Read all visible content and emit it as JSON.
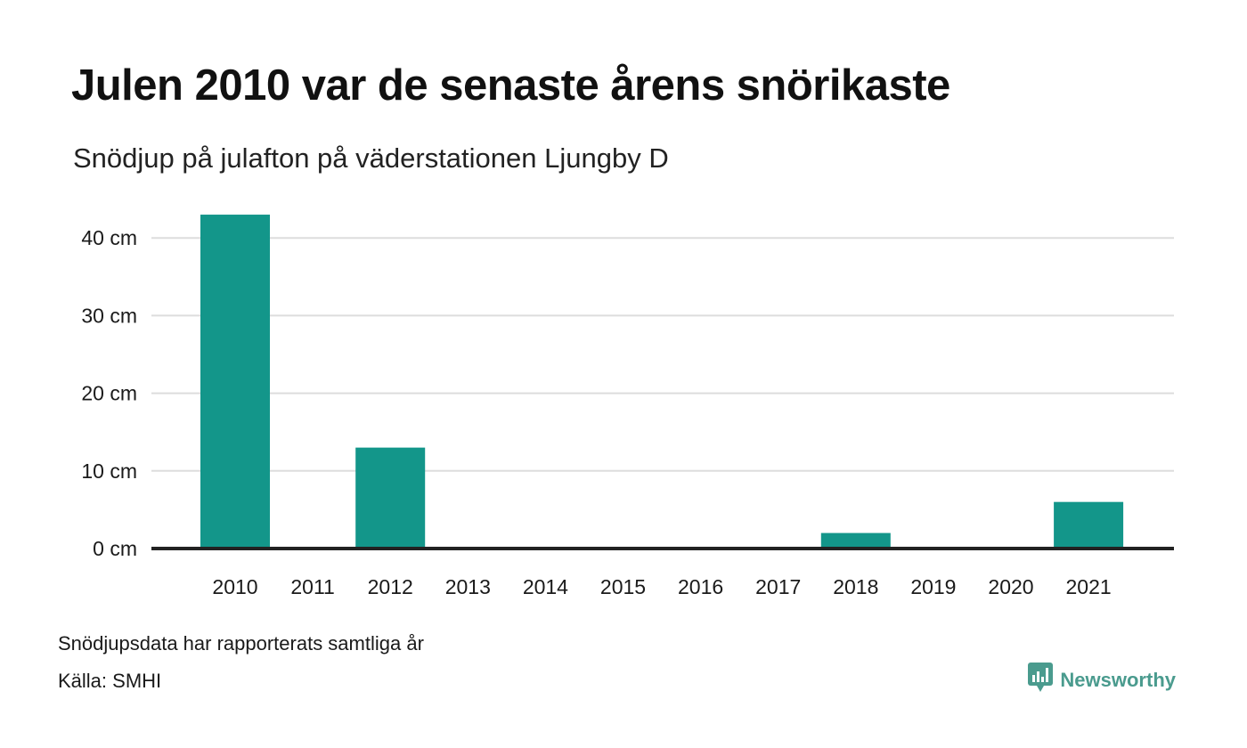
{
  "title": "Julen 2010 var de senaste årens snörikaste",
  "subtitle": "Snödjup på julafton på väderstationen Ljungby D",
  "notes": {
    "data_note": "Snödjupsdata har rapporterats samtliga år",
    "source": "Källa: SMHI"
  },
  "brand": {
    "name": "Newsworthy",
    "icon": "newsworthy-logo-icon"
  },
  "colors": {
    "bar": "#13968a",
    "baseline": "#222222",
    "grid": "#dddddd",
    "brand": "#4a9b8e"
  },
  "chart_data": {
    "type": "bar",
    "categories": [
      "2010",
      "2011",
      "2012",
      "2013",
      "2014",
      "2015",
      "2016",
      "2017",
      "2018",
      "2019",
      "2020",
      "2021"
    ],
    "values": [
      43,
      0,
      13,
      0,
      0,
      0,
      0,
      0,
      2,
      0,
      0,
      6
    ],
    "yticks": [
      0,
      10,
      20,
      30,
      40
    ],
    "ytick_labels": [
      "0 cm",
      "10 cm",
      "20 cm",
      "30 cm",
      "40 cm"
    ],
    "ylim": [
      0,
      43
    ],
    "grid": true,
    "legend": false,
    "xlabel": "",
    "ylabel": ""
  }
}
